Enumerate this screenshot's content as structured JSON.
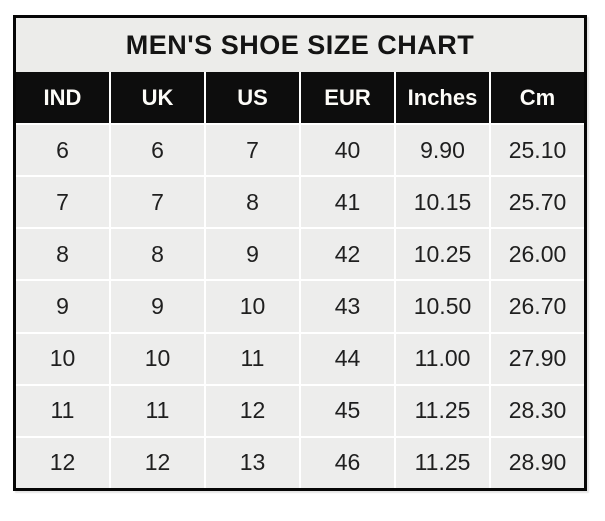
{
  "chart_data": {
    "type": "table",
    "title": "MEN'S SHOE SIZE CHART",
    "columns": [
      "IND",
      "UK",
      "US",
      "EUR",
      "Inches",
      "Cm"
    ],
    "rows": [
      [
        "6",
        "6",
        "7",
        "40",
        "9.90",
        "25.10"
      ],
      [
        "7",
        "7",
        "8",
        "41",
        "10.15",
        "25.70"
      ],
      [
        "8",
        "8",
        "9",
        "42",
        "10.25",
        "26.00"
      ],
      [
        "9",
        "9",
        "10",
        "43",
        "10.50",
        "26.70"
      ],
      [
        "10",
        "10",
        "11",
        "44",
        "11.00",
        "27.90"
      ],
      [
        "11",
        "11",
        "12",
        "45",
        "11.25",
        "28.30"
      ],
      [
        "12",
        "12",
        "13",
        "46",
        "11.25",
        "28.90"
      ]
    ],
    "layout": {
      "legend": "none",
      "grid": "white gridlines between cells",
      "header_position": "top"
    },
    "colors": {
      "title_bg": "#ececea",
      "header_bg": "#0d0d0d",
      "header_text": "#fdfcf8",
      "cell_bg": "#ededec",
      "body_text": "#1f1f1f",
      "grid_line": "#ffffff",
      "outer_border": "#060606",
      "page_bg": "#ffffff"
    }
  }
}
